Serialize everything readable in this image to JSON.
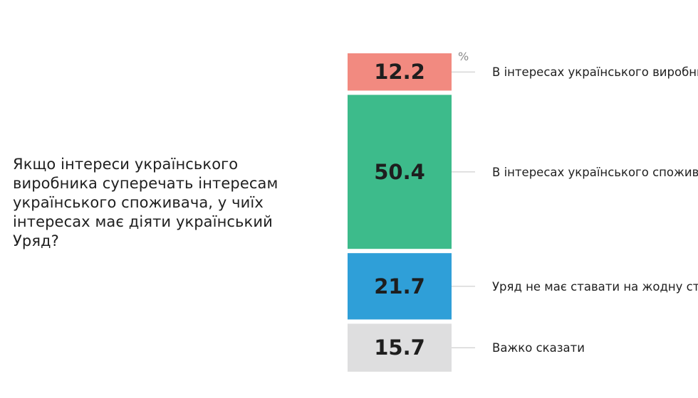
{
  "question": "Якщо інтереси українського виробника суперечать інтересам українського споживача, у чиїх інтересах має діяти український Уряд?",
  "chart_data": {
    "type": "bar",
    "orientation": "stacked-vertical-single",
    "unit": "%",
    "categories": [
      "В інтересах українського виробника",
      "В інтересах українського споживача",
      "Уряд не має ставати на жодну сторону",
      "Важко сказати"
    ],
    "values": [
      12.2,
      50.4,
      21.7,
      15.7
    ],
    "value_labels": [
      "12.2",
      "50.4",
      "21.7",
      "15.7"
    ],
    "colors": [
      "#f28a80",
      "#3dbb8b",
      "#2f9fd8",
      "#dededf"
    ]
  }
}
